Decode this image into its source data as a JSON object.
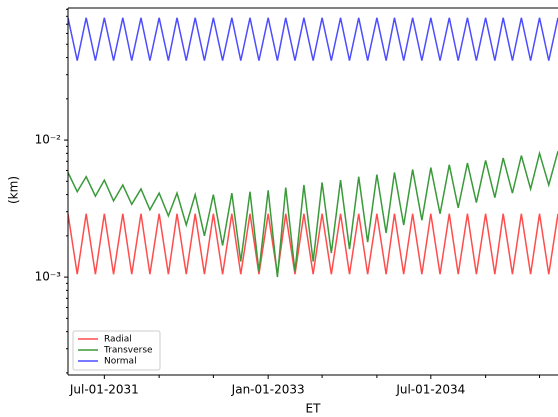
{
  "chart_data": {
    "type": "line",
    "x_label": "ET",
    "y_label": "(km)",
    "log_y": true,
    "legend": "lower left",
    "x": [
      "2031-03-01",
      "2031-04-01",
      "2031-05-01",
      "2031-06-01",
      "2031-07-01",
      "2031-08-01",
      "2031-09-01",
      "2031-10-01",
      "2031-11-01",
      "2031-12-01",
      "2032-01-01",
      "2032-02-01",
      "2032-03-01",
      "2032-04-01",
      "2032-05-01",
      "2032-06-01",
      "2032-07-01",
      "2032-08-01",
      "2032-09-01",
      "2032-10-01",
      "2032-11-01",
      "2032-12-01",
      "2033-01-01",
      "2033-02-01",
      "2033-03-01",
      "2033-04-01",
      "2033-05-01",
      "2033-06-01",
      "2033-07-01",
      "2033-08-01",
      "2033-09-01",
      "2033-10-01",
      "2033-11-01",
      "2033-12-01",
      "2034-01-01",
      "2034-02-01",
      "2034-03-01",
      "2034-04-01",
      "2034-05-01",
      "2034-06-01",
      "2034-07-01",
      "2034-08-01",
      "2034-09-01",
      "2034-10-01",
      "2034-11-01",
      "2034-12-01",
      "2035-01-01",
      "2035-02-01",
      "2035-03-01",
      "2035-04-01",
      "2035-05-01",
      "2035-06-01",
      "2035-07-01",
      "2035-08-01",
      "2035-09-01"
    ],
    "series": [
      {
        "name": "Radial",
        "color": "#ff4d4d",
        "values": [
          0.0029,
          0.00105,
          0.0029,
          0.00105,
          0.0029,
          0.00105,
          0.0029,
          0.00105,
          0.0029,
          0.00105,
          0.0029,
          0.00105,
          0.0029,
          0.00105,
          0.0029,
          0.00105,
          0.0029,
          0.00105,
          0.0029,
          0.00105,
          0.0029,
          0.00105,
          0.0029,
          0.00105,
          0.0029,
          0.00105,
          0.0029,
          0.00105,
          0.0029,
          0.00105,
          0.0029,
          0.00105,
          0.0029,
          0.00105,
          0.0029,
          0.00105,
          0.0029,
          0.00105,
          0.0029,
          0.00105,
          0.0029,
          0.00105,
          0.0029,
          0.00105,
          0.0029,
          0.00105,
          0.0029,
          0.00105,
          0.0029,
          0.00105,
          0.0029,
          0.00105,
          0.0029,
          0.00105,
          0.0029
        ]
      },
      {
        "name": "Transverse",
        "color": "#3a9a3a",
        "values": [
          0.0058,
          0.0042,
          0.0054,
          0.0039,
          0.0051,
          0.0036,
          0.0047,
          0.0034,
          0.0044,
          0.0031,
          0.0041,
          0.0028,
          0.0041,
          0.0024,
          0.004,
          0.002,
          0.004,
          0.0017,
          0.0041,
          0.0013,
          0.0042,
          0.0011,
          0.0043,
          0.001,
          0.0045,
          0.0011,
          0.0047,
          0.0013,
          0.0049,
          0.0015,
          0.0051,
          0.0016,
          0.0054,
          0.0018,
          0.0056,
          0.0021,
          0.0058,
          0.0024,
          0.0061,
          0.0026,
          0.0063,
          0.0029,
          0.0066,
          0.0032,
          0.0068,
          0.0035,
          0.0071,
          0.0038,
          0.0074,
          0.0041,
          0.0077,
          0.0044,
          0.008,
          0.0047,
          0.0083
        ]
      },
      {
        "name": "Normal",
        "color": "#4d4dff",
        "values": [
          0.078,
          0.038,
          0.078,
          0.038,
          0.078,
          0.038,
          0.078,
          0.038,
          0.078,
          0.038,
          0.078,
          0.038,
          0.078,
          0.038,
          0.078,
          0.038,
          0.078,
          0.038,
          0.078,
          0.038,
          0.078,
          0.038,
          0.078,
          0.038,
          0.078,
          0.038,
          0.078,
          0.038,
          0.078,
          0.038,
          0.078,
          0.038,
          0.078,
          0.038,
          0.078,
          0.038,
          0.078,
          0.038,
          0.078,
          0.038,
          0.078,
          0.038,
          0.078,
          0.038,
          0.078,
          0.038,
          0.078,
          0.038,
          0.078,
          0.038,
          0.078,
          0.038,
          0.078,
          0.038,
          0.078
        ]
      }
    ],
    "xlim": [
      "2031-03-01",
      "2035-09-01"
    ],
    "xticks": [
      {
        "value": "2031-07-01",
        "label": "Jul-01-2031"
      },
      {
        "value": "2033-01-01",
        "label": "Jan-01-2033"
      },
      {
        "value": "2034-07-01",
        "label": "Jul-01-2034"
      }
    ],
    "xminorticks": [
      "2032-01-01",
      "2032-07-01",
      "2033-07-01",
      "2034-01-01",
      "2035-01-01",
      "2035-07-01"
    ],
    "ylim": [
      0.000193,
      0.092
    ],
    "yticks": [
      {
        "value": 0.001,
        "label": "10⁻³"
      },
      {
        "value": 0.01,
        "label": "10⁻²"
      }
    ],
    "yminorticks": [
      0.0002,
      0.0003,
      0.0004,
      0.0005,
      0.0006,
      0.0007,
      0.0008,
      0.0009,
      0.002,
      0.003,
      0.004,
      0.005,
      0.006,
      0.007,
      0.008,
      0.009,
      0.02,
      0.03,
      0.04,
      0.05,
      0.06,
      0.07,
      0.08,
      0.09
    ]
  }
}
